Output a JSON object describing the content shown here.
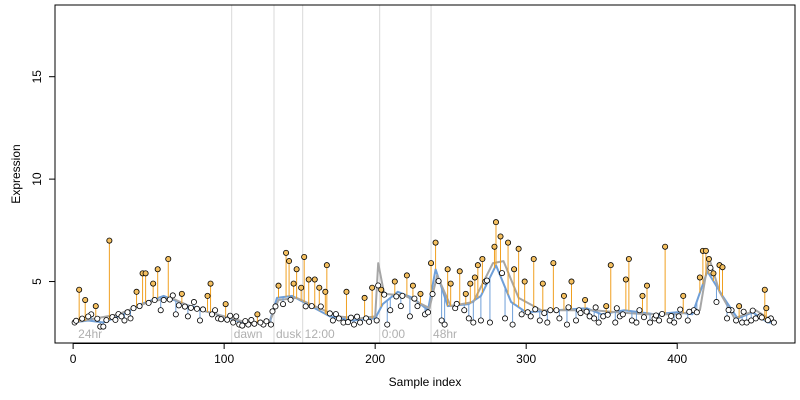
{
  "chart_data": {
    "type": "scatter",
    "title": "",
    "xlabel": "Sample index",
    "ylabel": "Expression",
    "xlim": [
      -12,
      478
    ],
    "ylim": [
      2.0,
      18.5
    ],
    "x_ticks": [
      0,
      100,
      200,
      300,
      400
    ],
    "y_ticks": [
      5,
      10,
      15
    ],
    "grid": false,
    "colors": {
      "baseline_line": "#6f9fd8",
      "overlay_line": "#a6a6a6",
      "segment_above": "#f0a020",
      "segment_below": "#6f9fd8",
      "marker_edge": "#000000",
      "marker_fill": "#ffffff",
      "marker_fill_above": "#f5c060",
      "vline": "#d9d9d9"
    },
    "vlines": [
      {
        "x": 105,
        "label": "dawn"
      },
      {
        "x": 133,
        "label": "dusk"
      },
      {
        "x": 152,
        "label": "12:00"
      },
      {
        "x": 203,
        "label": "0:00"
      },
      {
        "x": 237,
        "label": "48hr"
      }
    ],
    "start_label": {
      "x": 2,
      "label": "24hr"
    },
    "baseline_anchors": [
      [
        0,
        3.0
      ],
      [
        10,
        3.1
      ],
      [
        20,
        3.0
      ],
      [
        30,
        3.3
      ],
      [
        45,
        3.9
      ],
      [
        60,
        4.3
      ],
      [
        70,
        4.0
      ],
      [
        85,
        3.6
      ],
      [
        100,
        3.3
      ],
      [
        112,
        3.0
      ],
      [
        130,
        3.0
      ],
      [
        135,
        4.2
      ],
      [
        145,
        4.3
      ],
      [
        155,
        3.9
      ],
      [
        170,
        3.3
      ],
      [
        185,
        3.1
      ],
      [
        200,
        3.2
      ],
      [
        205,
        3.9
      ],
      [
        215,
        4.5
      ],
      [
        225,
        4.2
      ],
      [
        235,
        3.6
      ],
      [
        240,
        5.6
      ],
      [
        248,
        3.8
      ],
      [
        262,
        3.9
      ],
      [
        270,
        4.3
      ],
      [
        280,
        5.8
      ],
      [
        290,
        4.0
      ],
      [
        300,
        3.5
      ],
      [
        320,
        3.6
      ],
      [
        340,
        3.7
      ],
      [
        350,
        3.4
      ],
      [
        365,
        3.6
      ],
      [
        385,
        3.4
      ],
      [
        400,
        3.5
      ],
      [
        410,
        3.4
      ],
      [
        420,
        5.5
      ],
      [
        430,
        4.3
      ],
      [
        440,
        3.2
      ],
      [
        450,
        3.5
      ],
      [
        460,
        3.0
      ],
      [
        465,
        3.0
      ]
    ],
    "overlay_anchors": [
      [
        0,
        3.0
      ],
      [
        15,
        3.2
      ],
      [
        30,
        3.4
      ],
      [
        50,
        4.0
      ],
      [
        65,
        4.2
      ],
      [
        80,
        3.7
      ],
      [
        100,
        3.3
      ],
      [
        115,
        3.0
      ],
      [
        130,
        3.0
      ],
      [
        136,
        4.1
      ],
      [
        148,
        4.2
      ],
      [
        160,
        3.8
      ],
      [
        175,
        3.3
      ],
      [
        190,
        3.2
      ],
      [
        200,
        3.3
      ],
      [
        202,
        5.9
      ],
      [
        206,
        4.4
      ],
      [
        220,
        4.3
      ],
      [
        236,
        3.7
      ],
      [
        241,
        5.3
      ],
      [
        250,
        3.8
      ],
      [
        265,
        4.0
      ],
      [
        278,
        5.9
      ],
      [
        285,
        6.0
      ],
      [
        295,
        4.2
      ],
      [
        310,
        3.6
      ],
      [
        330,
        3.6
      ],
      [
        345,
        3.6
      ],
      [
        360,
        3.5
      ],
      [
        380,
        3.4
      ],
      [
        400,
        3.4
      ],
      [
        415,
        3.6
      ],
      [
        421,
        6.2
      ],
      [
        428,
        4.5
      ],
      [
        438,
        3.2
      ],
      [
        452,
        3.6
      ],
      [
        465,
        3.0
      ]
    ],
    "spikes": [
      [
        4,
        4.6
      ],
      [
        8,
        4.1
      ],
      [
        15,
        3.8
      ],
      [
        24,
        7.0
      ],
      [
        42,
        4.5
      ],
      [
        46,
        5.4
      ],
      [
        48,
        5.4
      ],
      [
        53,
        4.9
      ],
      [
        56,
        5.6
      ],
      [
        63,
        6.1
      ],
      [
        72,
        4.4
      ],
      [
        80,
        4.0
      ],
      [
        89,
        4.3
      ],
      [
        91,
        4.9
      ],
      [
        101,
        3.9
      ],
      [
        122,
        3.4
      ],
      [
        136,
        4.8
      ],
      [
        141,
        6.4
      ],
      [
        143,
        6.0
      ],
      [
        146,
        4.9
      ],
      [
        148,
        5.6
      ],
      [
        151,
        4.7
      ],
      [
        153,
        6.2
      ],
      [
        156,
        5.1
      ],
      [
        160,
        5.1
      ],
      [
        163,
        4.7
      ],
      [
        167,
        4.5
      ],
      [
        168,
        5.8
      ],
      [
        181,
        4.5
      ],
      [
        193,
        4.2
      ],
      [
        198,
        4.7
      ],
      [
        204,
        4.6
      ],
      [
        213,
        5.0
      ],
      [
        221,
        5.3
      ],
      [
        225,
        4.8
      ],
      [
        230,
        4.4
      ],
      [
        237,
        5.9
      ],
      [
        240,
        6.9
      ],
      [
        248,
        5.6
      ],
      [
        250,
        4.9
      ],
      [
        256,
        5.5
      ],
      [
        260,
        4.4
      ],
      [
        263,
        4.9
      ],
      [
        266,
        5.2
      ],
      [
        268,
        5.8
      ],
      [
        271,
        6.1
      ],
      [
        273,
        5.0
      ],
      [
        279,
        6.7
      ],
      [
        280,
        7.9
      ],
      [
        283,
        7.2
      ],
      [
        288,
        6.9
      ],
      [
        292,
        5.6
      ],
      [
        295,
        6.6
      ],
      [
        299,
        5.0
      ],
      [
        305,
        6.1
      ],
      [
        311,
        4.9
      ],
      [
        318,
        5.9
      ],
      [
        325,
        4.3
      ],
      [
        330,
        5.0
      ],
      [
        339,
        4.1
      ],
      [
        353,
        3.8
      ],
      [
        356,
        5.8
      ],
      [
        366,
        5.1
      ],
      [
        368,
        6.1
      ],
      [
        377,
        4.3
      ],
      [
        380,
        4.8
      ],
      [
        392,
        6.7
      ],
      [
        404,
        4.3
      ],
      [
        415,
        5.2
      ],
      [
        417,
        6.5
      ],
      [
        419,
        6.5
      ],
      [
        421,
        6.1
      ],
      [
        424,
        5.4
      ],
      [
        428,
        5.8
      ],
      [
        430,
        5.7
      ],
      [
        441,
        3.8
      ],
      [
        458,
        4.6
      ]
    ],
    "dips": [
      [
        1,
        3.0
      ],
      [
        12,
        3.4
      ],
      [
        18,
        2.8
      ],
      [
        20,
        2.8
      ],
      [
        34,
        3.1
      ],
      [
        38,
        3.2
      ],
      [
        44,
        3.8
      ],
      [
        58,
        3.6
      ],
      [
        68,
        3.4
      ],
      [
        76,
        3.3
      ],
      [
        84,
        3.1
      ],
      [
        96,
        3.2
      ],
      [
        106,
        3.0
      ],
      [
        110,
        2.9
      ],
      [
        116,
        2.9
      ],
      [
        126,
        2.9
      ],
      [
        131,
        2.9
      ],
      [
        139,
        3.9
      ],
      [
        158,
        3.8
      ],
      [
        172,
        3.1
      ],
      [
        176,
        3.2
      ],
      [
        179,
        3.0
      ],
      [
        186,
        2.9
      ],
      [
        190,
        3.0
      ],
      [
        201,
        3.1
      ],
      [
        208,
        2.9
      ],
      [
        210,
        3.6
      ],
      [
        217,
        3.8
      ],
      [
        223,
        3.3
      ],
      [
        228,
        3.8
      ],
      [
        233,
        3.4
      ],
      [
        235,
        3.5
      ],
      [
        244,
        3.1
      ],
      [
        246,
        2.9
      ],
      [
        253,
        3.7
      ],
      [
        259,
        3.6
      ],
      [
        262,
        3.2
      ],
      [
        265,
        3.0
      ],
      [
        270,
        3.1
      ],
      [
        276,
        3.0
      ],
      [
        286,
        3.2
      ],
      [
        291,
        2.9
      ],
      [
        297,
        3.4
      ],
      [
        301,
        3.5
      ],
      [
        303,
        3.3
      ],
      [
        309,
        3.1
      ],
      [
        314,
        3.0
      ],
      [
        316,
        3.6
      ],
      [
        322,
        3.2
      ],
      [
        327,
        2.9
      ],
      [
        333,
        3.1
      ],
      [
        335,
        3.6
      ],
      [
        342,
        3.3
      ],
      [
        345,
        3.2
      ],
      [
        348,
        3.0
      ],
      [
        351,
        3.3
      ],
      [
        359,
        3.0
      ],
      [
        362,
        3.3
      ],
      [
        364,
        3.4
      ],
      [
        370,
        3.1
      ],
      [
        373,
        3.0
      ],
      [
        375,
        3.6
      ],
      [
        382,
        3.0
      ],
      [
        385,
        3.2
      ],
      [
        388,
        3.1
      ],
      [
        395,
        3.1
      ],
      [
        398,
        3.0
      ],
      [
        401,
        3.3
      ],
      [
        407,
        3.1
      ],
      [
        411,
        3.6
      ],
      [
        413,
        3.5
      ],
      [
        426,
        4.0
      ],
      [
        433,
        3.2
      ],
      [
        436,
        3.6
      ],
      [
        439,
        3.1
      ],
      [
        443,
        3.0
      ],
      [
        446,
        3.0
      ],
      [
        449,
        3.1
      ],
      [
        452,
        3.2
      ],
      [
        455,
        3.3
      ],
      [
        459,
        3.7
      ],
      [
        462,
        3.2
      ],
      [
        464,
        3.0
      ]
    ]
  }
}
